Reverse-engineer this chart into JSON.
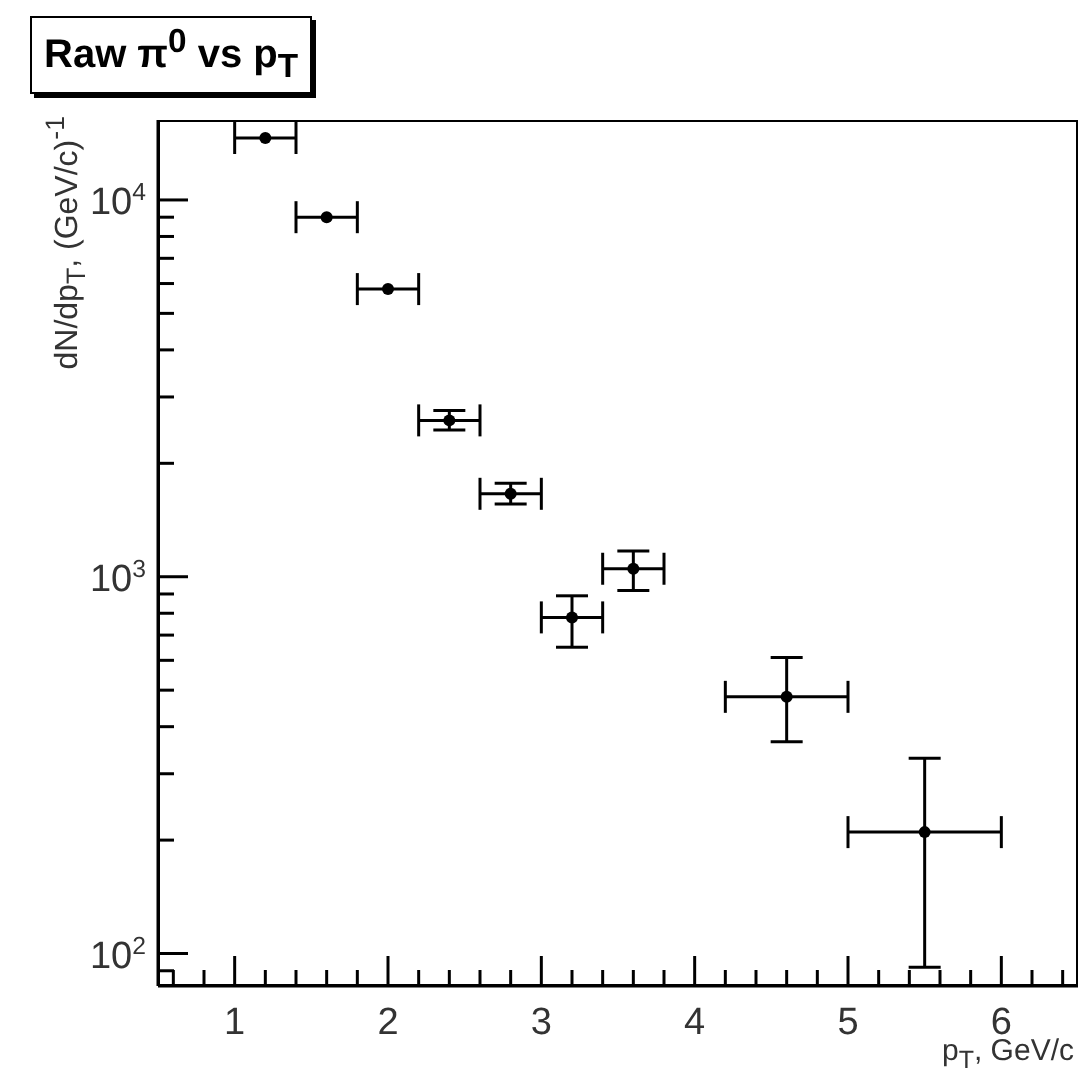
{
  "chart_data": {
    "type": "scatter",
    "title": "Raw π$^{0}$ vs p$_{T}$",
    "xlabel": "p$_{T}$, GeV/c",
    "ylabel": "dN/dp$_{T}$, (GeV/c)$^{-1}$",
    "log": "y",
    "marker": "circle",
    "xlim": [
      0.5,
      6.5
    ],
    "xticks": [
      {
        "value": 0.6,
        "label": null
      },
      {
        "value": 0.8,
        "label": null
      },
      1,
      {
        "value": 1.2,
        "label": null
      },
      {
        "value": 1.4,
        "label": null
      },
      {
        "value": 1.6,
        "label": null
      },
      {
        "value": 1.8,
        "label": null
      },
      2,
      {
        "value": 2.2,
        "label": null
      },
      {
        "value": 2.4,
        "label": null
      },
      {
        "value": 2.6,
        "label": null
      },
      {
        "value": 2.8,
        "label": null
      },
      3,
      {
        "value": 3.2,
        "label": null
      },
      {
        "value": 3.4,
        "label": null
      },
      {
        "value": 3.6,
        "label": null
      },
      {
        "value": 3.8,
        "label": null
      },
      4,
      {
        "value": 4.2,
        "label": null
      },
      {
        "value": 4.4,
        "label": null
      },
      {
        "value": 4.6,
        "label": null
      },
      {
        "value": 4.8,
        "label": null
      },
      5,
      {
        "value": 5.2,
        "label": null
      },
      {
        "value": 5.4,
        "label": null
      },
      {
        "value": 5.6,
        "label": null
      },
      {
        "value": 5.8,
        "label": null
      },
      6,
      {
        "value": 6.2,
        "label": null
      },
      {
        "value": 6.4,
        "label": null
      }
    ],
    "ylim": [
      82,
      16300
    ],
    "yticks": [
      {
        "value": 90,
        "label": null
      },
      {
        "value": 100,
        "label": "10$^{2}$"
      },
      {
        "value": 200,
        "label": null
      },
      {
        "value": 300,
        "label": null
      },
      {
        "value": 400,
        "label": null
      },
      {
        "value": 500,
        "label": null
      },
      {
        "value": 600,
        "label": null
      },
      {
        "value": 700,
        "label": null
      },
      {
        "value": 800,
        "label": null
      },
      {
        "value": 900,
        "label": null
      },
      {
        "value": 1000,
        "label": "10$^{3}$"
      },
      {
        "value": 2000,
        "label": null
      },
      {
        "value": 3000,
        "label": null
      },
      {
        "value": 4000,
        "label": null
      },
      {
        "value": 5000,
        "label": null
      },
      {
        "value": 6000,
        "label": null
      },
      {
        "value": 7000,
        "label": null
      },
      {
        "value": 8000,
        "label": null
      },
      {
        "value": 9000,
        "label": null
      },
      {
        "value": 10000,
        "label": "10$^{4}$"
      }
    ],
    "series": [
      {
        "color": "#000000",
        "x": [
          1.2,
          1.6,
          2.0,
          2.4,
          2.8,
          3.2,
          3.6,
          4.6,
          5.5
        ],
        "values": [
          14600,
          9000,
          5800,
          2600,
          1660,
          780,
          1050,
          480,
          210
        ],
        "errors": [
          null,
          null,
          null,
          [
            2450,
            2760
          ],
          [
            1560,
            1770
          ],
          [
            650,
            890
          ],
          [
            920,
            1170
          ],
          [
            365,
            610
          ],
          [
            92,
            330
          ]
        ],
        "xerrors": [
          0.2,
          0.2,
          0.2,
          0.2,
          0.2,
          0.2,
          0.2,
          [
            4.2,
            5.0
          ],
          [
            5.0,
            6.0
          ]
        ]
      }
    ]
  }
}
